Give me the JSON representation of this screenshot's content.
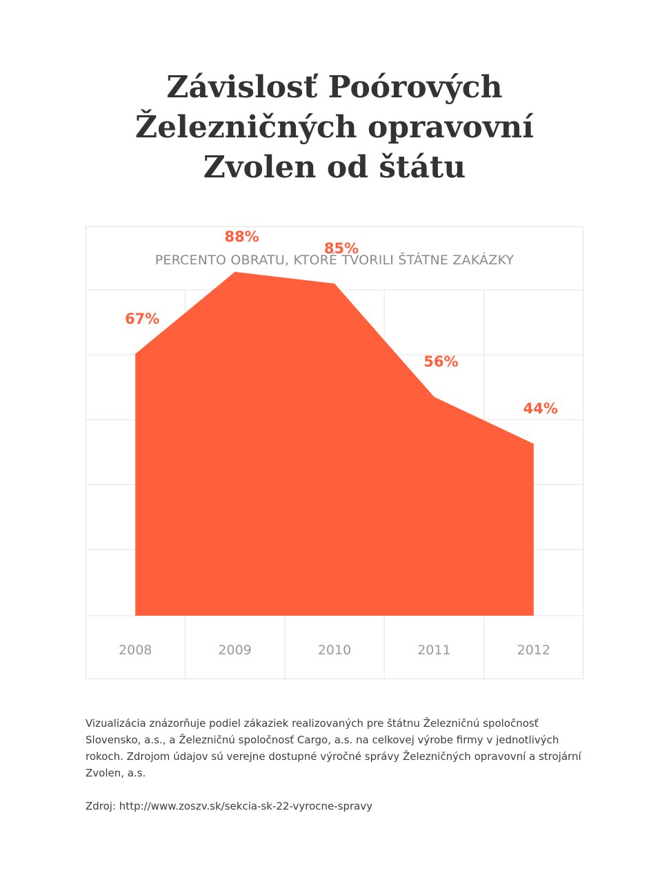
{
  "title_lines": [
    "Závislosť Poórových",
    "Železničných opravovní",
    "Zvolen od štátu"
  ],
  "description": "Vizualizácia znázorňuje podiel zákaziek realizovaných pre štátnu Železničnú spoločnosť Slovensko, a.s., a Železničnú spoločnosť Cargo, a.s. na celkovej výrobe firmy v jednotlivých rokoch. Zdrojom údajov sú verejne dostupné výročné správy Železničných opravovní a strojární Zvolen, a.s.",
  "source": "Zdroj: http://www.zoszv.sk/sekcia-sk-22-vyrocne-spravy",
  "colors": {
    "area": "#ff5f3a",
    "label": "#ff5f3a",
    "grid": "#e3e3e3",
    "axis_text": "#999999"
  },
  "chart_data": {
    "type": "area",
    "title": "PERCENTO OBRATU, KTORÉ TVORILI ŠTÁTNE ZAKÁZKY",
    "categories": [
      "2008",
      "2009",
      "2010",
      "2011",
      "2012"
    ],
    "values": [
      67,
      88,
      85,
      56,
      44
    ],
    "labels": [
      "67%",
      "88%",
      "85%",
      "56%",
      "44%"
    ],
    "ylim": [
      0,
      100
    ],
    "xlabel": "",
    "ylabel": "",
    "grid": true
  }
}
